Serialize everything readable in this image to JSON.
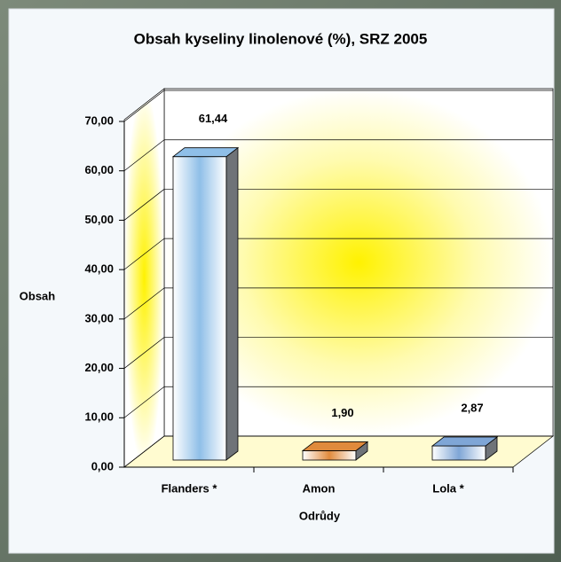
{
  "chart_data": {
    "type": "bar",
    "title": "Obsah kyseliny linolenové (%), SRZ 2005",
    "x_label": "Odrůdy",
    "y_label": "Obsah",
    "categories": [
      "Flanders *",
      "Amon",
      "Lola *"
    ],
    "values": [
      61.44,
      1.9,
      2.87
    ],
    "value_labels": [
      "61,44",
      "1,90",
      "2,87"
    ],
    "colors": [
      "#8fbfe8",
      "#e08a3c",
      "#7fa6d6"
    ],
    "ylim": [
      0,
      70
    ],
    "yticks": [
      {
        "value": 0,
        "label": "0,00"
      },
      {
        "value": 10,
        "label": "10,00"
      },
      {
        "value": 20,
        "label": "20,00"
      },
      {
        "value": 30,
        "label": "30,00"
      },
      {
        "value": 40,
        "label": "40,00"
      },
      {
        "value": 50,
        "label": "50,00"
      },
      {
        "value": 60,
        "label": "60,00"
      },
      {
        "value": 70,
        "label": "70,00"
      }
    ],
    "grid": true
  }
}
